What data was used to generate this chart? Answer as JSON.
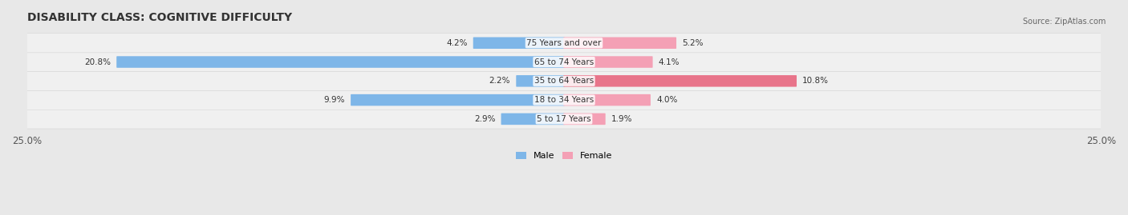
{
  "title": "DISABILITY CLASS: COGNITIVE DIFFICULTY",
  "source": "Source: ZipAtlas.com",
  "categories": [
    "5 to 17 Years",
    "18 to 34 Years",
    "35 to 64 Years",
    "65 to 74 Years",
    "75 Years and over"
  ],
  "male_values": [
    2.9,
    9.9,
    2.2,
    20.8,
    4.2
  ],
  "female_values": [
    1.9,
    4.0,
    10.8,
    4.1,
    5.2
  ],
  "max_val": 25.0,
  "male_color": "#7EB6E8",
  "female_color": "#F4A0B5",
  "female_color_dark": "#E8748A",
  "bg_color": "#E8E8E8",
  "row_bg": "#F0F0F0",
  "label_color": "#333333",
  "title_fontsize": 10,
  "tick_fontsize": 8.5,
  "bar_height": 0.55,
  "legend_male": "Male",
  "legend_female": "Female"
}
